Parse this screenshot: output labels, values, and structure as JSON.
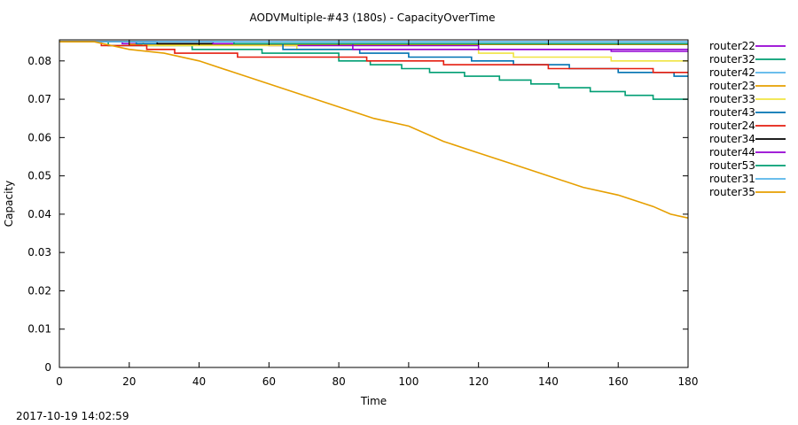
{
  "timestamp": "2017-10-19 14:02:59",
  "chart_data": {
    "type": "line",
    "title": "AODVMultiple-#43 (180s) - CapacityOverTime",
    "xlabel": "Time",
    "ylabel": "Capacity",
    "xlim": [
      0,
      180
    ],
    "ylim": [
      0,
      0.085
    ],
    "xticks": [
      0,
      20,
      40,
      60,
      80,
      100,
      120,
      140,
      160,
      180
    ],
    "yticks": [
      0,
      0.01,
      0.02,
      0.03,
      0.04,
      0.05,
      0.06,
      0.07,
      0.08
    ],
    "ytick_labels": [
      "0",
      "0.01",
      "0.02",
      "0.03",
      "0.04",
      "0.05",
      "0.06",
      "0.07",
      "0.08"
    ],
    "grid": false,
    "legend_position": "right",
    "step": true,
    "series": [
      {
        "name": "router22",
        "color": "#9400d3",
        "points": [
          [
            0,
            0.085
          ],
          [
            18,
            0.085
          ],
          [
            18,
            0.0845
          ],
          [
            60,
            0.0845
          ],
          [
            60,
            0.084
          ],
          [
            120,
            0.084
          ],
          [
            120,
            0.083
          ],
          [
            158,
            0.083
          ],
          [
            158,
            0.0825
          ],
          [
            180,
            0.0825
          ]
        ]
      },
      {
        "name": "router32",
        "color": "#009e73",
        "points": [
          [
            0,
            0.085
          ],
          [
            14,
            0.085
          ],
          [
            14,
            0.084
          ],
          [
            38,
            0.084
          ],
          [
            38,
            0.083
          ],
          [
            58,
            0.083
          ],
          [
            58,
            0.082
          ],
          [
            80,
            0.082
          ],
          [
            80,
            0.08
          ],
          [
            89,
            0.08
          ],
          [
            89,
            0.079
          ],
          [
            98,
            0.079
          ],
          [
            98,
            0.078
          ],
          [
            106,
            0.078
          ],
          [
            106,
            0.077
          ],
          [
            116,
            0.077
          ],
          [
            116,
            0.076
          ],
          [
            126,
            0.076
          ],
          [
            126,
            0.075
          ],
          [
            135,
            0.075
          ],
          [
            135,
            0.074
          ],
          [
            143,
            0.074
          ],
          [
            143,
            0.073
          ],
          [
            152,
            0.073
          ],
          [
            152,
            0.072
          ],
          [
            162,
            0.072
          ],
          [
            162,
            0.071
          ],
          [
            170,
            0.071
          ],
          [
            170,
            0.07
          ],
          [
            180,
            0.07
          ]
        ]
      },
      {
        "name": "router42",
        "color": "#56b4e9",
        "points": [
          [
            0,
            0.085
          ],
          [
            180,
            0.085
          ]
        ]
      },
      {
        "name": "router23",
        "color": "#e69f00",
        "points": [
          [
            0,
            0.085
          ],
          [
            20,
            0.085
          ],
          [
            20,
            0.0843
          ],
          [
            180,
            0.0843
          ]
        ]
      },
      {
        "name": "router33",
        "color": "#f0e442",
        "points": [
          [
            0,
            0.085
          ],
          [
            24,
            0.085
          ],
          [
            24,
            0.084
          ],
          [
            68,
            0.084
          ],
          [
            68,
            0.083
          ],
          [
            120,
            0.083
          ],
          [
            120,
            0.082
          ],
          [
            130,
            0.082
          ],
          [
            130,
            0.081
          ],
          [
            158,
            0.081
          ],
          [
            158,
            0.08
          ],
          [
            180,
            0.08
          ]
        ]
      },
      {
        "name": "router43",
        "color": "#0072b2",
        "points": [
          [
            0,
            0.085
          ],
          [
            22,
            0.085
          ],
          [
            22,
            0.0845
          ],
          [
            64,
            0.0845
          ],
          [
            64,
            0.083
          ],
          [
            86,
            0.083
          ],
          [
            86,
            0.082
          ],
          [
            100,
            0.082
          ],
          [
            100,
            0.081
          ],
          [
            118,
            0.081
          ],
          [
            118,
            0.08
          ],
          [
            130,
            0.08
          ],
          [
            130,
            0.079
          ],
          [
            146,
            0.079
          ],
          [
            146,
            0.078
          ],
          [
            160,
            0.078
          ],
          [
            160,
            0.077
          ],
          [
            176,
            0.077
          ],
          [
            176,
            0.076
          ],
          [
            180,
            0.076
          ]
        ]
      },
      {
        "name": "router24",
        "color": "#e51e10",
        "points": [
          [
            0,
            0.085
          ],
          [
            12,
            0.085
          ],
          [
            12,
            0.084
          ],
          [
            25,
            0.084
          ],
          [
            25,
            0.083
          ],
          [
            33,
            0.083
          ],
          [
            33,
            0.082
          ],
          [
            51,
            0.082
          ],
          [
            51,
            0.081
          ],
          [
            69,
            0.081
          ],
          [
            69,
            0.081
          ],
          [
            88,
            0.081
          ],
          [
            88,
            0.08
          ],
          [
            110,
            0.08
          ],
          [
            110,
            0.079
          ],
          [
            140,
            0.079
          ],
          [
            140,
            0.078
          ],
          [
            170,
            0.078
          ],
          [
            170,
            0.077
          ],
          [
            180,
            0.077
          ]
        ]
      },
      {
        "name": "router34",
        "color": "#000000",
        "points": [
          [
            0,
            0.085
          ],
          [
            28,
            0.085
          ],
          [
            28,
            0.0845
          ],
          [
            180,
            0.0845
          ]
        ]
      },
      {
        "name": "router44",
        "color": "#9400d3",
        "points": [
          [
            0,
            0.085
          ],
          [
            44,
            0.085
          ],
          [
            44,
            0.0845
          ],
          [
            84,
            0.0845
          ],
          [
            84,
            0.083
          ],
          [
            180,
            0.083
          ]
        ]
      },
      {
        "name": "router53",
        "color": "#009e73",
        "points": [
          [
            0,
            0.085
          ],
          [
            50,
            0.085
          ],
          [
            50,
            0.0845
          ],
          [
            180,
            0.0845
          ]
        ]
      },
      {
        "name": "router31",
        "color": "#56b4e9",
        "points": [
          [
            0,
            0.085
          ],
          [
            180,
            0.085
          ]
        ]
      },
      {
        "name": "router35",
        "color": "#e69f00",
        "points": [
          [
            0,
            0.085
          ],
          [
            10,
            0.085
          ],
          [
            20,
            0.083
          ],
          [
            30,
            0.082
          ],
          [
            40,
            0.08
          ],
          [
            50,
            0.077
          ],
          [
            60,
            0.074
          ],
          [
            70,
            0.071
          ],
          [
            80,
            0.068
          ],
          [
            90,
            0.065
          ],
          [
            100,
            0.063
          ],
          [
            110,
            0.059
          ],
          [
            120,
            0.056
          ],
          [
            130,
            0.053
          ],
          [
            140,
            0.05
          ],
          [
            150,
            0.047
          ],
          [
            160,
            0.045
          ],
          [
            170,
            0.042
          ],
          [
            175,
            0.04
          ],
          [
            180,
            0.039
          ]
        ]
      }
    ]
  }
}
